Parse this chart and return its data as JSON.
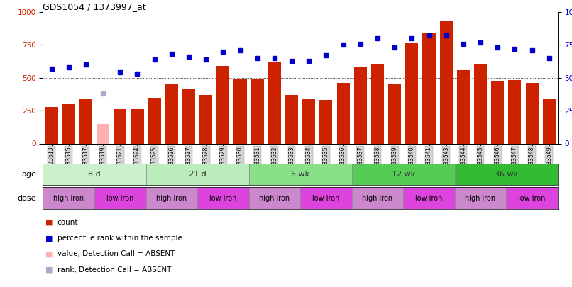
{
  "title": "GDS1054 / 1373997_at",
  "samples": [
    "GSM33513",
    "GSM33515",
    "GSM33517",
    "GSM33519",
    "GSM33521",
    "GSM33524",
    "GSM33525",
    "GSM33526",
    "GSM33527",
    "GSM33528",
    "GSM33529",
    "GSM33530",
    "GSM33531",
    "GSM33532",
    "GSM33533",
    "GSM33534",
    "GSM33535",
    "GSM33536",
    "GSM33537",
    "GSM33538",
    "GSM33539",
    "GSM33540",
    "GSM33541",
    "GSM33543",
    "GSM33544",
    "GSM33545",
    "GSM33546",
    "GSM33547",
    "GSM33548",
    "GSM33549"
  ],
  "counts": [
    280,
    300,
    340,
    150,
    260,
    260,
    350,
    450,
    410,
    370,
    590,
    490,
    490,
    620,
    370,
    340,
    330,
    460,
    580,
    600,
    450,
    770,
    840,
    930,
    560,
    600,
    470,
    480,
    460,
    340
  ],
  "absent_count": [
    false,
    false,
    false,
    true,
    false,
    false,
    false,
    false,
    false,
    false,
    false,
    false,
    false,
    false,
    false,
    false,
    false,
    false,
    false,
    false,
    false,
    false,
    false,
    false,
    false,
    false,
    false,
    false,
    false,
    false
  ],
  "percentile": [
    57,
    58,
    60,
    38,
    54,
    53,
    64,
    68,
    66,
    64,
    70,
    71,
    65,
    65,
    63,
    63,
    67,
    75,
    76,
    80,
    73,
    80,
    82,
    82,
    76,
    77,
    73,
    72,
    71,
    65
  ],
  "absent_percentile": [
    false,
    false,
    false,
    true,
    false,
    false,
    false,
    false,
    false,
    false,
    false,
    false,
    false,
    false,
    false,
    false,
    false,
    false,
    false,
    false,
    false,
    false,
    false,
    false,
    false,
    false,
    false,
    false,
    false,
    false
  ],
  "age_groups": [
    {
      "label": "8 d",
      "start": 0,
      "end": 6,
      "color": "#ccf0cc"
    },
    {
      "label": "21 d",
      "start": 6,
      "end": 12,
      "color": "#bbecbb"
    },
    {
      "label": "6 wk",
      "start": 12,
      "end": 18,
      "color": "#88e088"
    },
    {
      "label": "12 wk",
      "start": 18,
      "end": 24,
      "color": "#55cc55"
    },
    {
      "label": "36 wk",
      "start": 24,
      "end": 30,
      "color": "#33bb33"
    }
  ],
  "dose_groups": [
    {
      "label": "high iron",
      "start": 0,
      "end": 3,
      "color": "#cc88cc"
    },
    {
      "label": "low iron",
      "start": 3,
      "end": 6,
      "color": "#dd44dd"
    },
    {
      "label": "high iron",
      "start": 6,
      "end": 9,
      "color": "#cc88cc"
    },
    {
      "label": "low iron",
      "start": 9,
      "end": 12,
      "color": "#dd44dd"
    },
    {
      "label": "high iron",
      "start": 12,
      "end": 15,
      "color": "#cc88cc"
    },
    {
      "label": "low iron",
      "start": 15,
      "end": 18,
      "color": "#dd44dd"
    },
    {
      "label": "high iron",
      "start": 18,
      "end": 21,
      "color": "#cc88cc"
    },
    {
      "label": "low iron",
      "start": 21,
      "end": 24,
      "color": "#dd44dd"
    },
    {
      "label": "high iron",
      "start": 24,
      "end": 27,
      "color": "#cc88cc"
    },
    {
      "label": "low iron",
      "start": 27,
      "end": 30,
      "color": "#dd44dd"
    }
  ],
  "bar_color": "#cc2200",
  "absent_bar_color": "#ffb0b0",
  "dot_color": "#0000cc",
  "absent_dot_color": "#aaaacc",
  "yticks_left": [
    0,
    250,
    500,
    750,
    1000
  ],
  "yticks_right": [
    0,
    25,
    50,
    75,
    100
  ],
  "grid_values": [
    250,
    500,
    750
  ],
  "legend_items": [
    {
      "label": "count",
      "color": "#cc2200"
    },
    {
      "label": "percentile rank within the sample",
      "color": "#0000cc"
    },
    {
      "label": "value, Detection Call = ABSENT",
      "color": "#ffb0b0"
    },
    {
      "label": "rank, Detection Call = ABSENT",
      "color": "#aaaacc"
    }
  ]
}
